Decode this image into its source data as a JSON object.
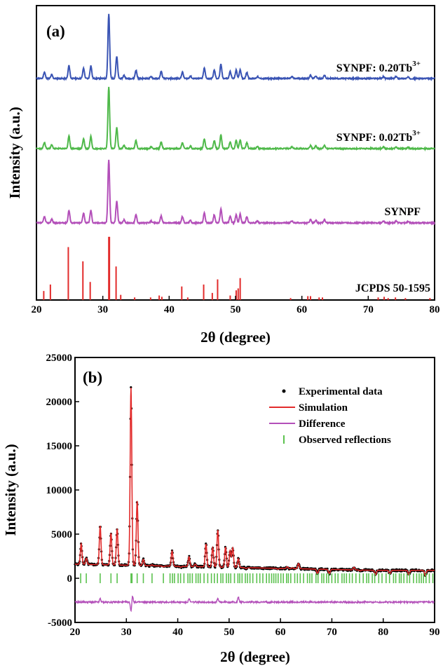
{
  "figure": {
    "panel_a": {
      "label": "(a)",
      "xlabel": "2θ (degree)",
      "ylabel": "Intensity (a.u.)",
      "series_labels": [
        "SYNPF: 0.20Tb",
        "SYNPF: 0.02Tb",
        "SYNPF",
        "JCPDS 50-1595"
      ],
      "superscript": "3+"
    },
    "panel_b": {
      "label": "(b)",
      "xlabel": "2θ (degree)",
      "ylabel": "Intensity (a.u.)",
      "legend": [
        "Experimental data",
        "Simulation",
        "Difference",
        "Observed reflections"
      ]
    }
  },
  "colors": {
    "blue": "#3a54b4",
    "green": "#4fb94a",
    "magenta": "#b34fb9",
    "red": "#e22b2b",
    "black": "#000000",
    "ref_green": "#5cc24f"
  },
  "chart_data": [
    {
      "type": "line",
      "panel": "a",
      "xlabel": "2θ (degree)",
      "ylabel": "Intensity (a.u.)",
      "xlim": [
        20,
        80
      ],
      "xticks": [
        20,
        30,
        40,
        50,
        60,
        70,
        80
      ],
      "yticks_shown": false,
      "peaks": [
        {
          "x": 21.2,
          "h": 0.1
        },
        {
          "x": 22.3,
          "h": 0.06
        },
        {
          "x": 24.9,
          "h": 0.2
        },
        {
          "x": 27.1,
          "h": 0.16
        },
        {
          "x": 28.2,
          "h": 0.2
        },
        {
          "x": 30.9,
          "h": 1.0
        },
        {
          "x": 32.1,
          "h": 0.34
        },
        {
          "x": 33.2,
          "h": 0.05
        },
        {
          "x": 35.0,
          "h": 0.13
        },
        {
          "x": 37.3,
          "h": 0.03
        },
        {
          "x": 38.8,
          "h": 0.11
        },
        {
          "x": 42.0,
          "h": 0.1
        },
        {
          "x": 43.2,
          "h": 0.04
        },
        {
          "x": 45.3,
          "h": 0.16
        },
        {
          "x": 46.8,
          "h": 0.13
        },
        {
          "x": 47.8,
          "h": 0.22
        },
        {
          "x": 49.2,
          "h": 0.11
        },
        {
          "x": 50.1,
          "h": 0.13
        },
        {
          "x": 50.7,
          "h": 0.14
        },
        {
          "x": 51.7,
          "h": 0.1
        },
        {
          "x": 53.3,
          "h": 0.03
        },
        {
          "x": 58.5,
          "h": 0.03
        },
        {
          "x": 61.3,
          "h": 0.05
        },
        {
          "x": 62.1,
          "h": 0.04
        },
        {
          "x": 63.4,
          "h": 0.05
        },
        {
          "x": 72.3,
          "h": 0.03
        },
        {
          "x": 74.2,
          "h": 0.03
        },
        {
          "x": 76.0,
          "h": 0.02
        }
      ],
      "series": [
        {
          "name": "SYNPF: 0.20Tb3+",
          "color": "#3a54b4"
        },
        {
          "name": "SYNPF: 0.02Tb3+",
          "color": "#4fb94a"
        },
        {
          "name": "SYNPF",
          "color": "#b34fb9"
        }
      ],
      "reference": {
        "name": "JCPDS 50-1595",
        "color": "#e22b2b",
        "lines": [
          {
            "x": 21.1,
            "h": 0.14
          },
          {
            "x": 22.1,
            "h": 0.24
          },
          {
            "x": 24.8,
            "h": 0.82
          },
          {
            "x": 27.0,
            "h": 0.6
          },
          {
            "x": 28.1,
            "h": 0.28
          },
          {
            "x": 30.9,
            "h": 0.98
          },
          {
            "x": 31.0,
            "h": 0.98
          },
          {
            "x": 32.0,
            "h": 0.52
          },
          {
            "x": 32.7,
            "h": 0.08
          },
          {
            "x": 34.8,
            "h": 0.04
          },
          {
            "x": 37.2,
            "h": 0.04
          },
          {
            "x": 38.5,
            "h": 0.07
          },
          {
            "x": 38.9,
            "h": 0.05
          },
          {
            "x": 41.9,
            "h": 0.21
          },
          {
            "x": 42.8,
            "h": 0.04
          },
          {
            "x": 45.2,
            "h": 0.24
          },
          {
            "x": 46.5,
            "h": 0.11
          },
          {
            "x": 47.3,
            "h": 0.32
          },
          {
            "x": 49.2,
            "h": 0.07
          },
          {
            "x": 50.1,
            "h": 0.15
          },
          {
            "x": 50.4,
            "h": 0.18
          },
          {
            "x": 50.7,
            "h": 0.34
          },
          {
            "x": 58.3,
            "h": 0.03
          },
          {
            "x": 60.9,
            "h": 0.06
          },
          {
            "x": 61.3,
            "h": 0.06
          },
          {
            "x": 62.6,
            "h": 0.04
          },
          {
            "x": 63.1,
            "h": 0.04
          },
          {
            "x": 71.5,
            "h": 0.04
          },
          {
            "x": 72.4,
            "h": 0.05
          },
          {
            "x": 73.0,
            "h": 0.03
          },
          {
            "x": 74.1,
            "h": 0.04
          },
          {
            "x": 75.6,
            "h": 0.03
          },
          {
            "x": 79.3,
            "h": 0.03
          }
        ]
      }
    },
    {
      "type": "line",
      "panel": "b",
      "xlabel": "2θ (degree)",
      "ylabel": "Intensity (a.u.)",
      "xlim": [
        20,
        90
      ],
      "ylim": [
        -5000,
        25000
      ],
      "xticks": [
        20,
        30,
        40,
        50,
        60,
        70,
        80,
        90
      ],
      "yticks": [
        -5000,
        0,
        5000,
        10000,
        15000,
        20000,
        25000
      ],
      "baseline": 1600,
      "peaks": [
        {
          "x": 21.2,
          "y": 3900
        },
        {
          "x": 22.2,
          "y": 2300
        },
        {
          "x": 24.9,
          "y": 6000
        },
        {
          "x": 27.0,
          "y": 5200
        },
        {
          "x": 28.2,
          "y": 5700
        },
        {
          "x": 30.9,
          "y": 21700
        },
        {
          "x": 32.1,
          "y": 8900
        },
        {
          "x": 33.3,
          "y": 2300
        },
        {
          "x": 35.0,
          "y": 1700
        },
        {
          "x": 37.2,
          "y": 1500
        },
        {
          "x": 38.9,
          "y": 3300
        },
        {
          "x": 40.6,
          "y": 1500
        },
        {
          "x": 42.2,
          "y": 2700
        },
        {
          "x": 43.4,
          "y": 1900
        },
        {
          "x": 45.5,
          "y": 4200
        },
        {
          "x": 46.8,
          "y": 3800
        },
        {
          "x": 47.8,
          "y": 5800
        },
        {
          "x": 49.3,
          "y": 3900
        },
        {
          "x": 50.2,
          "y": 3500
        },
        {
          "x": 50.7,
          "y": 3800
        },
        {
          "x": 51.8,
          "y": 2600
        },
        {
          "x": 53.3,
          "y": 1500
        },
        {
          "x": 58.6,
          "y": 1600
        },
        {
          "x": 59.5,
          "y": 1500
        },
        {
          "x": 61.3,
          "y": 1800
        },
        {
          "x": 62.3,
          "y": 1700
        },
        {
          "x": 63.5,
          "y": 2200
        },
        {
          "x": 67.2,
          "y": 1100
        },
        {
          "x": 69.5,
          "y": 1100
        },
        {
          "x": 72.3,
          "y": 1600
        },
        {
          "x": 74.3,
          "y": 1900
        },
        {
          "x": 75.5,
          "y": 1500
        },
        {
          "x": 78.5,
          "y": 1100
        },
        {
          "x": 81.3,
          "y": 1200
        },
        {
          "x": 85.0,
          "y": 1100
        },
        {
          "x": 88.2,
          "y": 1000
        }
      ],
      "difference_offset": -2700,
      "difference_features": [
        {
          "x": 30.9,
          "y": -3700
        },
        {
          "x": 31.2,
          "y": -2000
        },
        {
          "x": 24.9,
          "y": -2300
        },
        {
          "x": 42.2,
          "y": -2300
        },
        {
          "x": 47.8,
          "y": -2300
        },
        {
          "x": 51.8,
          "y": -2100
        }
      ],
      "reflections_y": 0,
      "legend": [
        {
          "name": "Experimental data",
          "color": "#000000",
          "marker": "dot"
        },
        {
          "name": "Simulation",
          "color": "#e22b2b",
          "marker": "line"
        },
        {
          "name": "Difference",
          "color": "#b34fb9",
          "marker": "line"
        },
        {
          "name": "Observed reflections",
          "color": "#5cc24f",
          "marker": "bar"
        }
      ]
    }
  ]
}
